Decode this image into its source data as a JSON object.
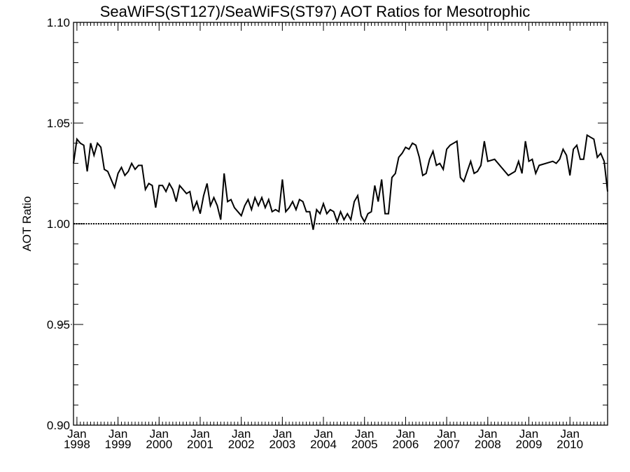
{
  "chart_data": {
    "type": "line",
    "title": "SeaWiFS(ST127)/SeaWiFS(ST97)  AOT Ratios for Mesotrophic",
    "xlabel": "",
    "ylabel": "AOT Ratio",
    "ylim": [
      0.9,
      1.1
    ],
    "xlim": [
      "1997-12",
      "2010-12"
    ],
    "y_ticks": [
      "0.90",
      "0.95",
      "1.00",
      "1.05",
      "1.10"
    ],
    "x_ticks": [
      {
        "month": "Jan",
        "year": "1998"
      },
      {
        "month": "Jan",
        "year": "1999"
      },
      {
        "month": "Jan",
        "year": "2000"
      },
      {
        "month": "Jan",
        "year": "2001"
      },
      {
        "month": "Jan",
        "year": "2002"
      },
      {
        "month": "Jan",
        "year": "2003"
      },
      {
        "month": "Jan",
        "year": "2004"
      },
      {
        "month": "Jan",
        "year": "2005"
      },
      {
        "month": "Jan",
        "year": "2006"
      },
      {
        "month": "Jan",
        "year": "2007"
      },
      {
        "month": "Jan",
        "year": "2008"
      },
      {
        "month": "Jan",
        "year": "2009"
      },
      {
        "month": "Jan",
        "year": "2010"
      }
    ],
    "reference_line": 1.0,
    "grid": false,
    "series": [
      {
        "x": [
          "1997-12",
          "1998-01",
          "1998-02",
          "1998-03",
          "1998-04",
          "1998-05",
          "1998-06",
          "1998-07",
          "1998-08",
          "1998-09",
          "1998-10",
          "1998-11",
          "1998-12",
          "1999-01",
          "1999-02",
          "1999-03",
          "1999-04",
          "1999-05",
          "1999-06",
          "1999-07",
          "1999-08",
          "1999-09",
          "1999-10",
          "1999-11",
          "1999-12",
          "2000-01",
          "2000-02",
          "2000-03",
          "2000-04",
          "2000-05",
          "2000-06",
          "2000-07",
          "2000-08",
          "2000-09",
          "2000-10",
          "2000-11",
          "2000-12",
          "2001-01",
          "2001-02",
          "2001-03",
          "2001-04",
          "2001-05",
          "2001-06",
          "2001-07",
          "2001-08",
          "2001-09",
          "2001-10",
          "2001-11",
          "2001-12",
          "2002-01",
          "2002-02",
          "2002-03",
          "2002-04",
          "2002-05",
          "2002-06",
          "2002-07",
          "2002-08",
          "2002-09",
          "2002-10",
          "2002-11",
          "2002-12",
          "2003-01",
          "2003-02",
          "2003-03",
          "2003-04",
          "2003-05",
          "2003-06",
          "2003-07",
          "2003-08",
          "2003-09",
          "2003-10",
          "2003-11",
          "2003-12",
          "2004-01",
          "2004-02",
          "2004-03",
          "2004-04",
          "2004-05",
          "2004-06",
          "2004-07",
          "2004-08",
          "2004-09",
          "2004-10",
          "2004-11",
          "2004-12",
          "2005-01",
          "2005-02",
          "2005-03",
          "2005-04",
          "2005-05",
          "2005-06",
          "2005-07",
          "2005-08",
          "2005-09",
          "2005-10",
          "2005-11",
          "2005-12",
          "2006-01",
          "2006-02",
          "2006-03",
          "2006-04",
          "2006-05",
          "2006-06",
          "2006-07",
          "2006-08",
          "2006-09",
          "2006-10",
          "2006-11",
          "2006-12",
          "2007-01",
          "2007-02",
          "2007-03",
          "2007-04",
          "2007-05",
          "2007-06",
          "2007-07",
          "2007-08",
          "2007-09",
          "2007-10",
          "2007-11",
          "2007-12",
          "2008-01",
          "2008-03",
          "2008-05",
          "2008-07",
          "2008-09",
          "2008-10",
          "2008-11",
          "2008-12",
          "2009-01",
          "2009-02",
          "2009-03",
          "2009-04",
          "2009-08",
          "2009-09",
          "2009-10",
          "2009-11",
          "2009-12",
          "2010-01",
          "2010-02",
          "2010-03",
          "2010-04",
          "2010-05",
          "2010-06",
          "2010-07",
          "2010-08",
          "2010-09",
          "2010-10",
          "2010-11",
          "2010-12"
        ],
        "values": [
          1.03,
          1.042,
          1.04,
          1.039,
          1.026,
          1.04,
          1.034,
          1.04,
          1.038,
          1.027,
          1.026,
          1.022,
          1.018,
          1.025,
          1.028,
          1.024,
          1.026,
          1.03,
          1.027,
          1.029,
          1.029,
          1.017,
          1.02,
          1.019,
          1.008,
          1.019,
          1.019,
          1.016,
          1.02,
          1.017,
          1.011,
          1.019,
          1.017,
          1.015,
          1.016,
          1.007,
          1.011,
          1.005,
          1.014,
          1.02,
          1.009,
          1.013,
          1.009,
          1.002,
          1.025,
          1.011,
          1.012,
          1.008,
          1.006,
          1.004,
          1.009,
          1.012,
          1.007,
          1.013,
          1.009,
          1.013,
          1.008,
          1.012,
          1.006,
          1.007,
          1.006,
          1.022,
          1.006,
          1.008,
          1.011,
          1.007,
          1.012,
          1.011,
          1.006,
          1.006,
          0.997,
          1.007,
          1.005,
          1.01,
          1.005,
          1.007,
          1.006,
          1.001,
          1.006,
          1.002,
          1.005,
          1.002,
          1.011,
          1.014,
          1.004,
          1.001,
          1.005,
          1.006,
          1.019,
          1.011,
          1.022,
          1.005,
          1.005,
          1.023,
          1.025,
          1.033,
          1.035,
          1.038,
          1.037,
          1.04,
          1.039,
          1.033,
          1.024,
          1.025,
          1.032,
          1.036,
          1.029,
          1.03,
          1.027,
          1.037,
          1.039,
          1.04,
          1.041,
          1.023,
          1.021,
          1.026,
          1.031,
          1.025,
          1.026,
          1.029,
          1.041,
          1.031,
          1.032,
          1.028,
          1.024,
          1.026,
          1.031,
          1.025,
          1.041,
          1.031,
          1.032,
          1.025,
          1.029,
          1.031,
          1.03,
          1.032,
          1.037,
          1.034,
          1.024,
          1.037,
          1.039,
          1.032,
          1.032,
          1.044,
          1.043,
          1.042,
          1.033,
          1.035,
          1.031,
          1.016
        ]
      }
    ]
  }
}
